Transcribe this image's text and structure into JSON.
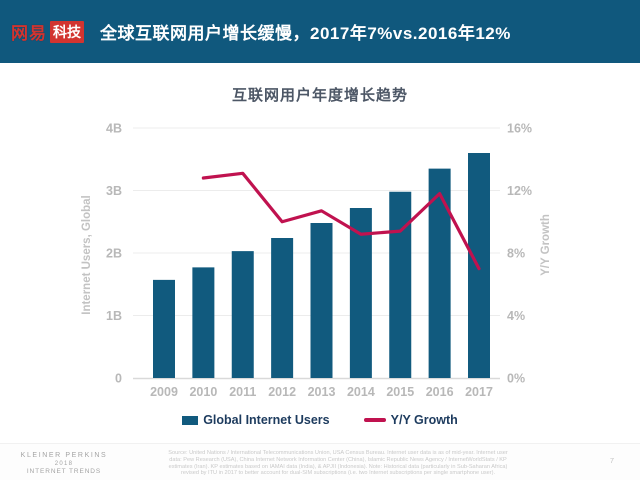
{
  "header": {
    "brand": {
      "part1": "网易",
      "part2": "科技"
    },
    "title": "全球互联网用户增长缓慢，2017年7%vs.2016年12%"
  },
  "chart_data": {
    "type": "bar",
    "title": "互联网用户年度增长趋势",
    "categories": [
      "2009",
      "2010",
      "2011",
      "2012",
      "2013",
      "2014",
      "2015",
      "2016",
      "2017"
    ],
    "series": [
      {
        "name": "Global Internet Users",
        "type": "bar",
        "axis": "left",
        "unit": "billions",
        "color": "#115a7e",
        "values": [
          1.57,
          1.77,
          2.03,
          2.24,
          2.48,
          2.72,
          2.98,
          3.35,
          3.6
        ]
      },
      {
        "name": "Y/Y Growth",
        "type": "line",
        "axis": "right",
        "unit": "%",
        "color": "#c0124f",
        "values": [
          null,
          12.8,
          13.1,
          10.0,
          10.7,
          9.2,
          9.4,
          11.8,
          7.0
        ]
      }
    ],
    "axes": {
      "left": {
        "label": "Internet Users, Global",
        "ticks": [
          "0",
          "1B",
          "2B",
          "3B",
          "4B"
        ],
        "range": [
          0,
          4
        ]
      },
      "right": {
        "label": "Y/Y Growth",
        "ticks": [
          "0%",
          "4%",
          "8%",
          "12%",
          "16%"
        ],
        "range": [
          0,
          16
        ]
      }
    },
    "grid": true,
    "legend_position": "bottom"
  },
  "footer": {
    "brand_lines": [
      "KLEINER PERKINS",
      "2018",
      "INTERNET TRENDS"
    ],
    "source_lines": [
      "Source: United Nations / International Telecommunications Union, USA Census Bureau. Internet user data is as of mid-year. Internet user",
      "data: Pew Research (USA), China Internet Network Information Center (China), Islamic Republic News Agency / InternetWorldStats / KP",
      "estimates (Iran). KP estimates based on IAMAI data (India), & APJII (Indonesia). Note: Historical data (particularly in Sub-Saharan Africa)",
      "revised by ITU in 2017 to better account for dual-SIM subscriptions (i.e. two Internet subscriptions per single smartphone user)."
    ],
    "page_number": "7"
  },
  "colors": {
    "header_bg": "#10587d",
    "bar": "#115a7e",
    "line": "#c0124f",
    "logo_red": "#d23430",
    "tick_gray": "#b8b8b8"
  }
}
